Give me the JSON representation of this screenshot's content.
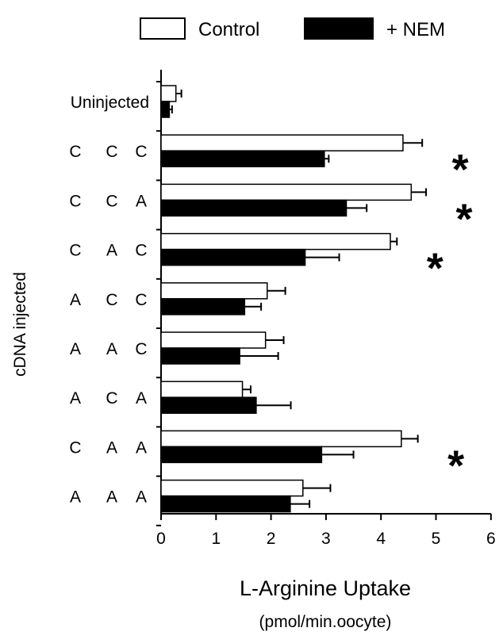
{
  "chart_data": {
    "type": "bar",
    "orientation": "horizontal",
    "title": "",
    "ylabel": "cDNA injected",
    "xlabel": "L-Arginine Uptake",
    "xunit": "(pmol/min.oocyte)",
    "xlim": [
      0,
      6
    ],
    "xticks": [
      "0",
      "1",
      "2",
      "3",
      "4",
      "5",
      "6"
    ],
    "legend": {
      "placement": "top"
    },
    "categories": [
      {
        "label": "Uninjected",
        "parts": []
      },
      {
        "label": "C C C",
        "parts": [
          "C",
          "C",
          "C"
        ]
      },
      {
        "label": "C C A",
        "parts": [
          "C",
          "C",
          "A"
        ]
      },
      {
        "label": "C A C",
        "parts": [
          "C",
          "A",
          "C"
        ]
      },
      {
        "label": "A C C",
        "parts": [
          "A",
          "C",
          "C"
        ]
      },
      {
        "label": "A A C",
        "parts": [
          "A",
          "A",
          "C"
        ]
      },
      {
        "label": "A C A",
        "parts": [
          "A",
          "C",
          "A"
        ]
      },
      {
        "label": "C A A",
        "parts": [
          "C",
          "A",
          "A"
        ]
      },
      {
        "label": "A A A",
        "parts": [
          "A",
          "A",
          "A"
        ]
      }
    ],
    "series": [
      {
        "name": "Control",
        "color": "#ffffff",
        "values": [
          0.27,
          4.4,
          4.55,
          4.17,
          1.93,
          1.9,
          1.48,
          4.37,
          2.58
        ],
        "errors": [
          0.1,
          0.35,
          0.27,
          0.12,
          0.33,
          0.33,
          0.15,
          0.3,
          0.5
        ]
      },
      {
        "name": "+ NEM",
        "color": "#000000",
        "values": [
          0.15,
          2.97,
          3.37,
          2.62,
          1.52,
          1.43,
          1.73,
          2.92,
          2.35
        ],
        "errors": [
          0.05,
          0.08,
          0.37,
          0.62,
          0.3,
          0.7,
          0.63,
          0.58,
          0.35
        ]
      }
    ],
    "annotations": [
      {
        "text": "*",
        "category_index": 1
      },
      {
        "text": "*",
        "category_index": 2
      },
      {
        "text": "*",
        "category_index": 3
      },
      {
        "text": "*",
        "category_index": 7
      }
    ]
  }
}
